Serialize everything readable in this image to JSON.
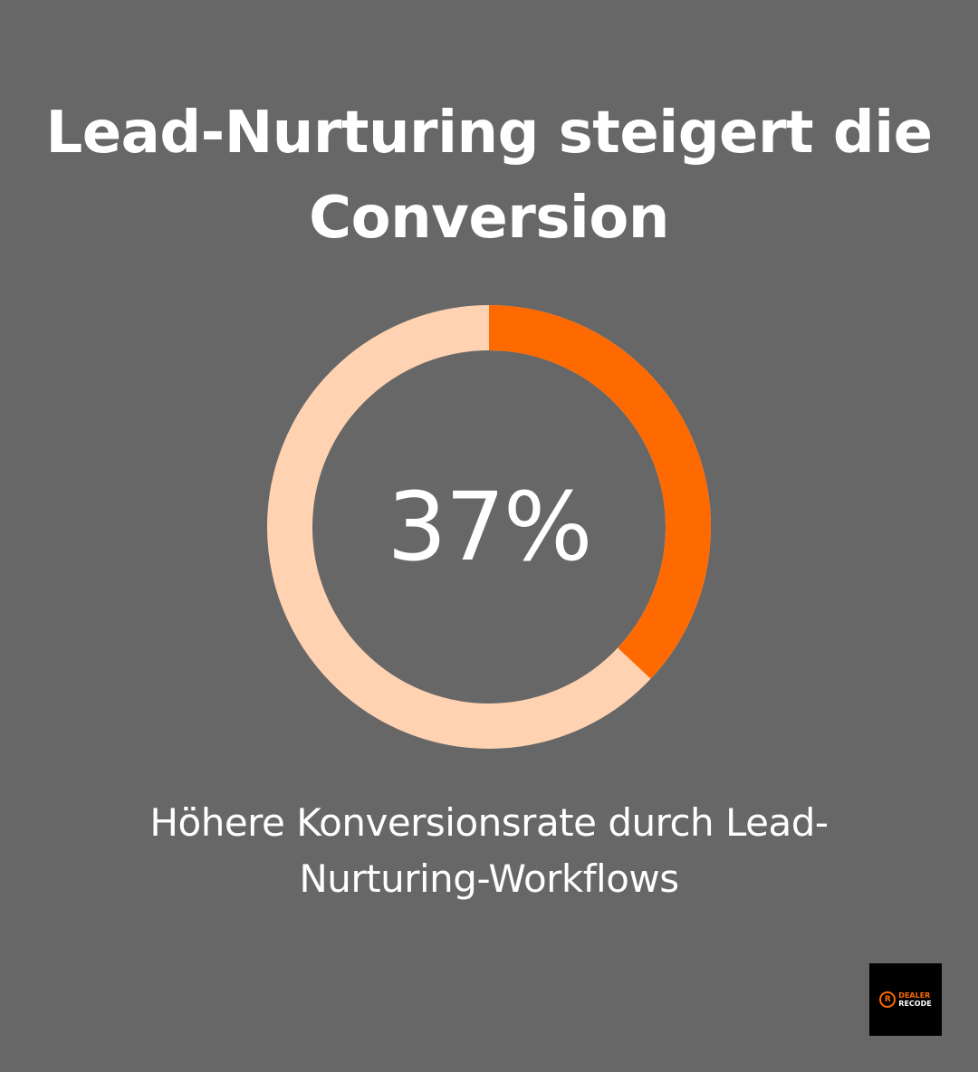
{
  "title": "Lead-Nurturing steigert die Conversion",
  "caption": "Höhere Konversionsrate durch Lead-Nurturing-Workflows",
  "chart_data": {
    "type": "pie",
    "value_label": "37%",
    "segments": [
      {
        "value": 37,
        "color": "#ff6a00"
      },
      {
        "value": 63,
        "color": "#ffd3b1"
      }
    ]
  },
  "colors": {
    "background": "#676767",
    "accent": "#ff6a00",
    "track": "#ffd3b1"
  },
  "logo": {
    "icon": "r-circle-icon",
    "line1": "DEALER",
    "line2": "RECODE"
  }
}
